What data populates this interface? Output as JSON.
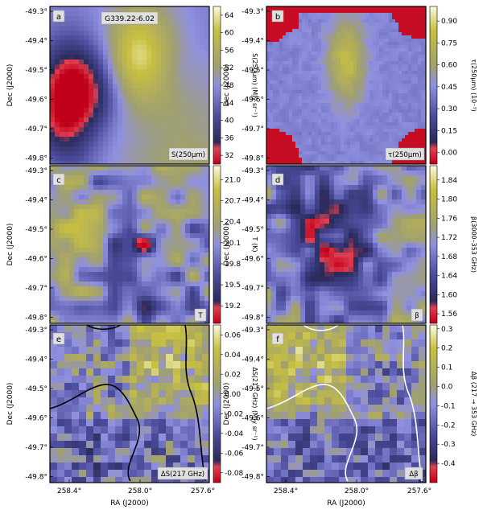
{
  "figure": {
    "source_title": "G339.22-6.02",
    "ylabel": "Dec (J2000)",
    "xlabel": "RA (J2000)",
    "dec_ticks": [
      "-49.3°",
      "-49.4°",
      "-49.5°",
      "-49.6°",
      "-49.7°",
      "-49.8°"
    ],
    "ra_ticks": [
      "258.4°",
      "258.0°",
      "257.6°"
    ]
  },
  "colors": {
    "low": "#d0102a",
    "mid_low": "#3a3a7a",
    "mid": "#8888d8",
    "high": "#c8c040",
    "top": "#ffffff",
    "white_contour": "#ffffff",
    "black_contour": "#000000"
  },
  "chart_data": [
    {
      "type": "heatmap",
      "panel": "a",
      "title": "G339.22-6.02",
      "map_label": "S(250μm)",
      "colorbar_label": "S(250μm) (MJy sr⁻¹)",
      "colorbar_ticks": [
        "64",
        "60",
        "56",
        "52",
        "48",
        "44",
        "40",
        "36",
        "32"
      ],
      "range": [
        30,
        66
      ]
    },
    {
      "type": "heatmap",
      "panel": "b",
      "map_label": "τ(250μm)",
      "colorbar_label": "τ(250μm) (10⁻³)",
      "colorbar_ticks": [
        "0.90",
        "0.75",
        "0.60",
        "0.45",
        "0.30",
        "0.15",
        "0.00"
      ],
      "range": [
        -0.08,
        1.0
      ]
    },
    {
      "type": "heatmap",
      "panel": "c",
      "map_label": "T",
      "colorbar_label": "T (K)",
      "colorbar_ticks": [
        "21.0",
        "20.7",
        "20.4",
        "20.1",
        "19.8",
        "19.5",
        "19.2"
      ],
      "range": [
        18.95,
        21.2
      ]
    },
    {
      "type": "heatmap",
      "panel": "d",
      "map_label": "β",
      "colorbar_label": "β(3000–353 GHz)",
      "colorbar_ticks": [
        "1.84",
        "1.80",
        "1.76",
        "1.72",
        "1.68",
        "1.64",
        "1.60",
        "1.56"
      ],
      "range": [
        1.54,
        1.87
      ]
    },
    {
      "type": "heatmap",
      "panel": "e",
      "map_label": "ΔS(217 GHz)",
      "colorbar_label": "ΔS(217 GHz) (MJy sr⁻¹)",
      "colorbar_ticks": [
        "0.06",
        "0.04",
        "0.02",
        "0.00",
        "-0.02",
        "-0.04",
        "-0.06",
        "-0.08"
      ],
      "range": [
        -0.09,
        0.07
      ]
    },
    {
      "type": "heatmap",
      "panel": "f",
      "map_label": "Δβ",
      "colorbar_label": "Δβ (217 → 353 GHz)",
      "colorbar_ticks": [
        "0.3",
        "0.2",
        "0.1",
        "0.0",
        "-0.1",
        "-0.2",
        "-0.3",
        "-0.4"
      ],
      "range": [
        -0.5,
        0.32
      ]
    }
  ]
}
